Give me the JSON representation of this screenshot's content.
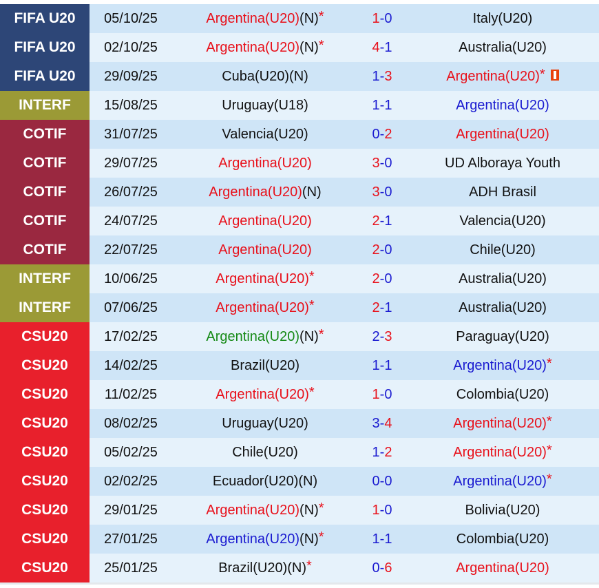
{
  "colors": {
    "comp": {
      "FIFA U20": "#2d4677",
      "INTERF": "#9b9a36",
      "COTIF": "#9a2840",
      "CSU20": "#e8202c"
    },
    "team": {
      "red": "#e8101a",
      "blue": "#1a1ad0",
      "green": "#168a16",
      "black": "#111111"
    },
    "score_win": "#e8101a",
    "score_other": "#1a1ad0"
  },
  "matches": [
    {
      "comp": "FIFA U20",
      "date": "05/10/25",
      "home": {
        "name": "Argentina(U20)",
        "color": "red",
        "neutral": "(N)",
        "star": "*"
      },
      "score": "1-0",
      "away": {
        "name": "Italy(U20)",
        "color": "black"
      }
    },
    {
      "comp": "FIFA U20",
      "date": "02/10/25",
      "home": {
        "name": "Argentina(U20)",
        "color": "red",
        "neutral": "(N)",
        "star": "*"
      },
      "score": "4-1",
      "away": {
        "name": "Australia(U20)",
        "color": "black"
      }
    },
    {
      "comp": "FIFA U20",
      "date": "29/09/25",
      "home": {
        "name": "Cuba(U20)",
        "color": "black",
        "neutral": "(N)"
      },
      "score": "1-3",
      "away": {
        "name": "Argentina(U20)",
        "color": "red",
        "star": "*",
        "icon": "red-card-icon"
      }
    },
    {
      "comp": "INTERF",
      "date": "15/08/25",
      "home": {
        "name": "Uruguay(U18)",
        "color": "black"
      },
      "score": "1-1",
      "away": {
        "name": "Argentina(U20)",
        "color": "blue"
      }
    },
    {
      "comp": "COTIF",
      "date": "31/07/25",
      "home": {
        "name": "Valencia(U20)",
        "color": "black"
      },
      "score": "0-2",
      "away": {
        "name": "Argentina(U20)",
        "color": "red"
      }
    },
    {
      "comp": "COTIF",
      "date": "29/07/25",
      "home": {
        "name": "Argentina(U20)",
        "color": "red"
      },
      "score": "3-0",
      "away": {
        "name": "UD Alboraya Youth",
        "color": "black"
      }
    },
    {
      "comp": "COTIF",
      "date": "26/07/25",
      "home": {
        "name": "Argentina(U20)",
        "color": "red",
        "neutral": "(N)"
      },
      "score": "3-0",
      "away": {
        "name": "ADH Brasil",
        "color": "black"
      }
    },
    {
      "comp": "COTIF",
      "date": "24/07/25",
      "home": {
        "name": "Argentina(U20)",
        "color": "red"
      },
      "score": "2-1",
      "away": {
        "name": "Valencia(U20)",
        "color": "black"
      }
    },
    {
      "comp": "COTIF",
      "date": "22/07/25",
      "home": {
        "name": "Argentina(U20)",
        "color": "red"
      },
      "score": "2-0",
      "away": {
        "name": "Chile(U20)",
        "color": "black"
      }
    },
    {
      "comp": "INTERF",
      "date": "10/06/25",
      "home": {
        "name": "Argentina(U20)",
        "color": "red",
        "star": "*"
      },
      "score": "2-0",
      "away": {
        "name": "Australia(U20)",
        "color": "black"
      }
    },
    {
      "comp": "INTERF",
      "date": "07/06/25",
      "home": {
        "name": "Argentina(U20)",
        "color": "red",
        "star": "*"
      },
      "score": "2-1",
      "away": {
        "name": "Australia(U20)",
        "color": "black"
      }
    },
    {
      "comp": "CSU20",
      "date": "17/02/25",
      "home": {
        "name": "Argentina(U20)",
        "color": "green",
        "neutral": "(N)",
        "star": "*"
      },
      "score": "2-3",
      "away": {
        "name": "Paraguay(U20)",
        "color": "black"
      }
    },
    {
      "comp": "CSU20",
      "date": "14/02/25",
      "home": {
        "name": "Brazil(U20)",
        "color": "black"
      },
      "score": "1-1",
      "away": {
        "name": "Argentina(U20)",
        "color": "blue",
        "star": "*"
      }
    },
    {
      "comp": "CSU20",
      "date": "11/02/25",
      "home": {
        "name": "Argentina(U20)",
        "color": "red",
        "star": "*"
      },
      "score": "1-0",
      "away": {
        "name": "Colombia(U20)",
        "color": "black"
      }
    },
    {
      "comp": "CSU20",
      "date": "08/02/25",
      "home": {
        "name": "Uruguay(U20)",
        "color": "black"
      },
      "score": "3-4",
      "away": {
        "name": "Argentina(U20)",
        "color": "red",
        "star": "*"
      }
    },
    {
      "comp": "CSU20",
      "date": "05/02/25",
      "home": {
        "name": "Chile(U20)",
        "color": "black"
      },
      "score": "1-2",
      "away": {
        "name": "Argentina(U20)",
        "color": "red",
        "star": "*"
      }
    },
    {
      "comp": "CSU20",
      "date": "02/02/25",
      "home": {
        "name": "Ecuador(U20)",
        "color": "black",
        "neutral": "(N)"
      },
      "score": "0-0",
      "away": {
        "name": "Argentina(U20)",
        "color": "blue",
        "star": "*"
      }
    },
    {
      "comp": "CSU20",
      "date": "29/01/25",
      "home": {
        "name": "Argentina(U20)",
        "color": "red",
        "neutral": "(N)",
        "star": "*"
      },
      "score": "1-0",
      "away": {
        "name": "Bolivia(U20)",
        "color": "black"
      }
    },
    {
      "comp": "CSU20",
      "date": "27/01/25",
      "home": {
        "name": "Argentina(U20)",
        "color": "blue",
        "neutral": "(N)",
        "star": "*"
      },
      "score": "1-1",
      "away": {
        "name": "Colombia(U20)",
        "color": "black"
      }
    },
    {
      "comp": "CSU20",
      "date": "25/01/25",
      "home": {
        "name": "Brazil(U20)",
        "color": "black",
        "neutral": "(N)",
        "star": "*"
      },
      "score": "0-6",
      "away": {
        "name": "Argentina(U20)",
        "color": "red"
      }
    }
  ]
}
